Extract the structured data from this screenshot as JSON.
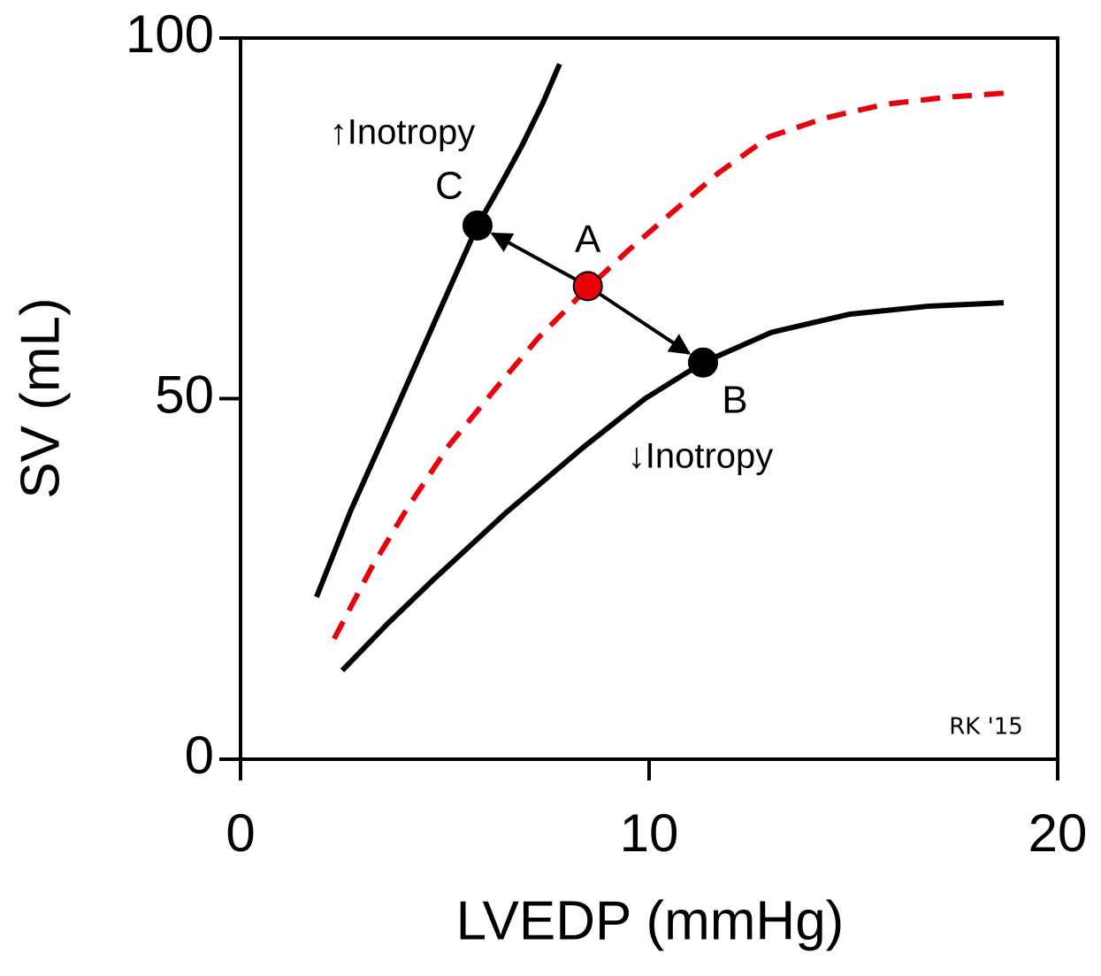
{
  "chart_data": {
    "type": "line",
    "xlabel": "LVEDP (mmHg)",
    "ylabel": "SV (mL)",
    "xlim": [
      0,
      20
    ],
    "xticks": [
      0,
      10,
      20
    ],
    "ylim": [
      0,
      100
    ],
    "yticks": [
      0,
      50,
      100
    ],
    "series": [
      {
        "color": "#000000",
        "dash": false,
        "x": [
          1.86,
          2.7,
          3.64,
          4.7,
          5.8,
          6.4,
          6.88,
          7.4,
          7.81
        ],
        "values": [
          22.5,
          34.5,
          46.4,
          60,
          74,
          80,
          85,
          91,
          96.4
        ]
      },
      {
        "color": "#e8000b",
        "dash": true,
        "x": [
          2.29,
          3.2,
          4.07,
          5.1,
          6.23,
          7.3,
          8.4,
          9.5,
          10.56,
          11.7,
          12.94,
          14.3,
          15.76,
          17.3,
          18.79
        ],
        "values": [
          16.7,
          26.5,
          34.7,
          43.5,
          51.3,
          58.5,
          64.8,
          70.6,
          75.8,
          81.3,
          86.3,
          88.9,
          90.8,
          91.8,
          92.4
        ]
      },
      {
        "color": "#000000",
        "dash": false,
        "x": [
          2.49,
          3.6,
          4.72,
          6.5,
          8.4,
          9.9,
          11.32,
          13.0,
          14.9,
          16.8,
          18.68
        ],
        "values": [
          12.3,
          18.8,
          24.9,
          34.2,
          43.3,
          50,
          55,
          59.2,
          61.7,
          62.8,
          63.3
        ]
      }
    ],
    "points": [
      {
        "label": "A",
        "x": 8.5,
        "y": 65.6,
        "color": "#e8000b"
      },
      {
        "label": "B",
        "x": 11.32,
        "y": 55,
        "color": "#000000"
      },
      {
        "label": "C",
        "x": 5.8,
        "y": 74,
        "color": "#000000"
      }
    ],
    "annotations": [
      "↑Inotropy",
      "↓Inotropy",
      "RK '15"
    ]
  }
}
